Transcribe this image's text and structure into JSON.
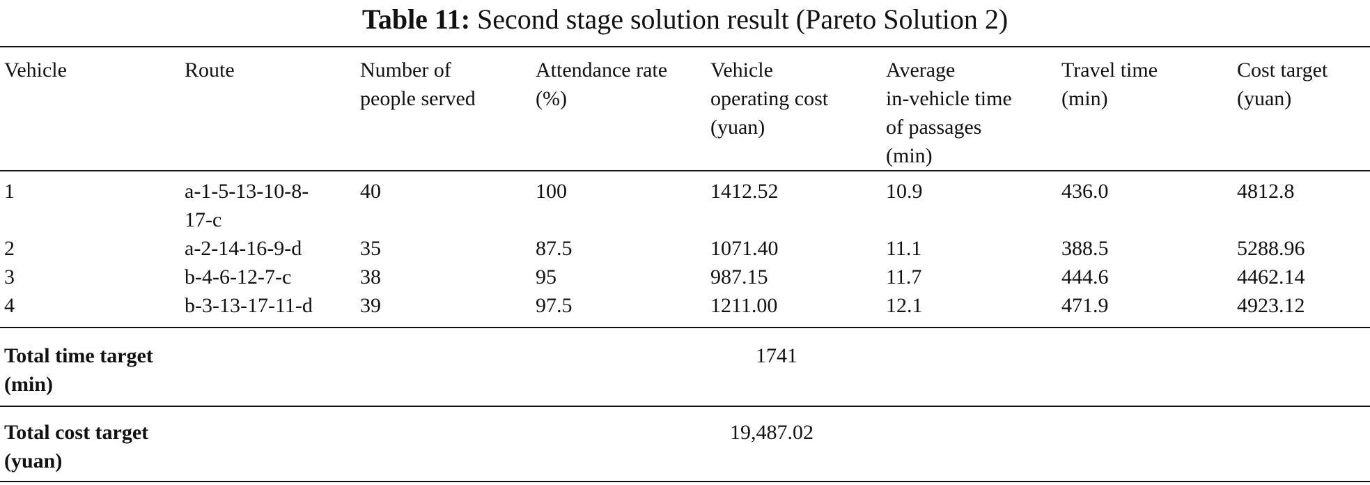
{
  "caption": {
    "label": "Table 11:",
    "text": "Second stage solution result (Pareto Solution 2)"
  },
  "header": [
    [
      "Vehicle"
    ],
    [
      "Route"
    ],
    [
      "Number of",
      "people served"
    ],
    [
      "Attendance rate",
      "(%)"
    ],
    [
      "Vehicle",
      "operating cost",
      "(yuan)"
    ],
    [
      "Average",
      "in-vehicle time",
      "of passages",
      "(min)"
    ],
    [
      "Travel time",
      "(min)"
    ],
    [
      "Cost target",
      "(yuan)"
    ]
  ],
  "rows": [
    {
      "vehicle": "1",
      "route": [
        "a-1-5-13-10-8-",
        "17-c"
      ],
      "people": "40",
      "attendance": "100",
      "operating_cost": "1412.52",
      "avg_time": "10.9",
      "travel_time": "436.0",
      "cost_target": "4812.8"
    },
    {
      "vehicle": "2",
      "route": [
        "a-2-14-16-9-d"
      ],
      "people": "35",
      "attendance": "87.5",
      "operating_cost": "1071.40",
      "avg_time": "11.1",
      "travel_time": "388.5",
      "cost_target": "5288.96"
    },
    {
      "vehicle": "3",
      "route": [
        "b-4-6-12-7-c"
      ],
      "people": "38",
      "attendance": "95",
      "operating_cost": "987.15",
      "avg_time": "11.7",
      "travel_time": "444.6",
      "cost_target": "4462.14"
    },
    {
      "vehicle": "4",
      "route": [
        "b-3-13-17-11-d"
      ],
      "people": "39",
      "attendance": "97.5",
      "operating_cost": "1211.00",
      "avg_time": "12.1",
      "travel_time": "471.9",
      "cost_target": "4923.12"
    }
  ],
  "totals": [
    {
      "label": [
        "Total time target",
        "(min)"
      ],
      "value": "1741"
    },
    {
      "label": [
        "Total cost target",
        "(yuan)"
      ],
      "value": "19,487.02"
    }
  ]
}
